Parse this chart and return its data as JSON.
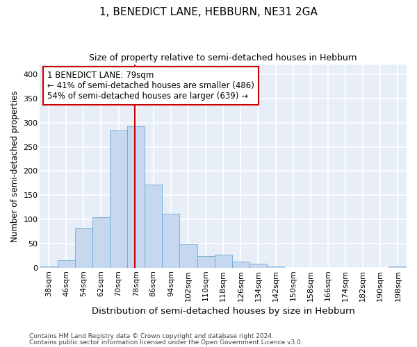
{
  "title": "1, BENEDICT LANE, HEBBURN, NE31 2GA",
  "subtitle": "Size of property relative to semi-detached houses in Hebburn",
  "xlabel": "Distribution of semi-detached houses by size in Hebburn",
  "ylabel": "Number of semi-detached properties",
  "bar_color": "#c5d8f0",
  "bar_edge_color": "#6aaad4",
  "background_color": "#e8eef8",
  "grid_color": "#ffffff",
  "categories": [
    "38sqm",
    "46sqm",
    "54sqm",
    "62sqm",
    "70sqm",
    "78sqm",
    "86sqm",
    "94sqm",
    "102sqm",
    "110sqm",
    "118sqm",
    "126sqm",
    "134sqm",
    "142sqm",
    "150sqm",
    "158sqm",
    "166sqm",
    "174sqm",
    "182sqm",
    "190sqm",
    "198sqm"
  ],
  "values": [
    3,
    15,
    82,
    105,
    284,
    293,
    172,
    111,
    48,
    24,
    27,
    13,
    8,
    3,
    0,
    0,
    0,
    0,
    0,
    0,
    3
  ],
  "ylim": [
    0,
    420
  ],
  "yticks": [
    0,
    50,
    100,
    150,
    200,
    250,
    300,
    350,
    400
  ],
  "property_bin_index": 5,
  "annotation_line1": "1 BENEDICT LANE: 79sqm",
  "annotation_line2": "← 41% of semi-detached houses are smaller (486)",
  "annotation_line3": "54% of semi-detached houses are larger (639) →",
  "annotation_box_color": "#ffffff",
  "annotation_box_edge": "#cc0000",
  "red_line_color": "#cc0000",
  "footer1": "Contains HM Land Registry data © Crown copyright and database right 2024.",
  "footer2": "Contains public sector information licensed under the Open Government Licence v3.0."
}
